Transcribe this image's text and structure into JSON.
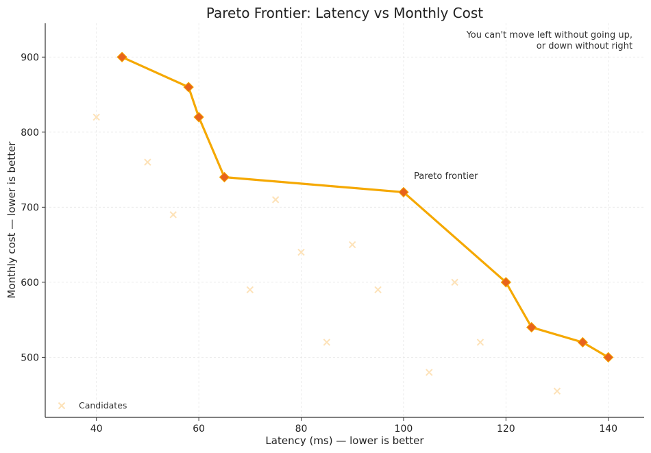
{
  "chart_data": {
    "type": "scatter",
    "title": "Pareto Frontier: Latency vs Monthly Cost",
    "xlabel": "Latency (ms) — lower is better",
    "ylabel": "Monthly cost — lower is better",
    "xlim": [
      30,
      147
    ],
    "ylim": [
      420,
      945
    ],
    "x_ticks": [
      40,
      60,
      80,
      100,
      120,
      140
    ],
    "y_ticks": [
      500,
      600,
      700,
      800,
      900
    ],
    "grid": true,
    "legend_position": "bottom-left",
    "colors": {
      "frontier_line": "#f5a800",
      "frontier_marker": "#e8631c",
      "candidates": "#fde2b8"
    },
    "series": [
      {
        "name": "Candidates",
        "kind": "scatter",
        "marker": "x",
        "points": [
          {
            "x": 40,
            "y": 820
          },
          {
            "x": 50,
            "y": 760
          },
          {
            "x": 55,
            "y": 690
          },
          {
            "x": 70,
            "y": 590
          },
          {
            "x": 75,
            "y": 710
          },
          {
            "x": 80,
            "y": 640
          },
          {
            "x": 85,
            "y": 520
          },
          {
            "x": 90,
            "y": 650
          },
          {
            "x": 95,
            "y": 590
          },
          {
            "x": 105,
            "y": 480
          },
          {
            "x": 110,
            "y": 600
          },
          {
            "x": 115,
            "y": 520
          },
          {
            "x": 130,
            "y": 455
          }
        ]
      },
      {
        "kind": "line",
        "marker": "diamond",
        "points": [
          {
            "x": 45,
            "y": 900
          },
          {
            "x": 58,
            "y": 860
          },
          {
            "x": 60,
            "y": 820
          },
          {
            "x": 65,
            "y": 740
          },
          {
            "x": 100,
            "y": 720
          },
          {
            "x": 120,
            "y": 600
          },
          {
            "x": 125,
            "y": 540
          },
          {
            "x": 135,
            "y": 520
          },
          {
            "x": 140,
            "y": 500
          }
        ]
      }
    ],
    "annotations": [
      {
        "text": "Pareto frontier",
        "x": 102,
        "y": 740
      },
      {
        "lines": [
          "You can't move left without going up,",
          "or down without right"
        ],
        "position": "top-right"
      }
    ]
  }
}
